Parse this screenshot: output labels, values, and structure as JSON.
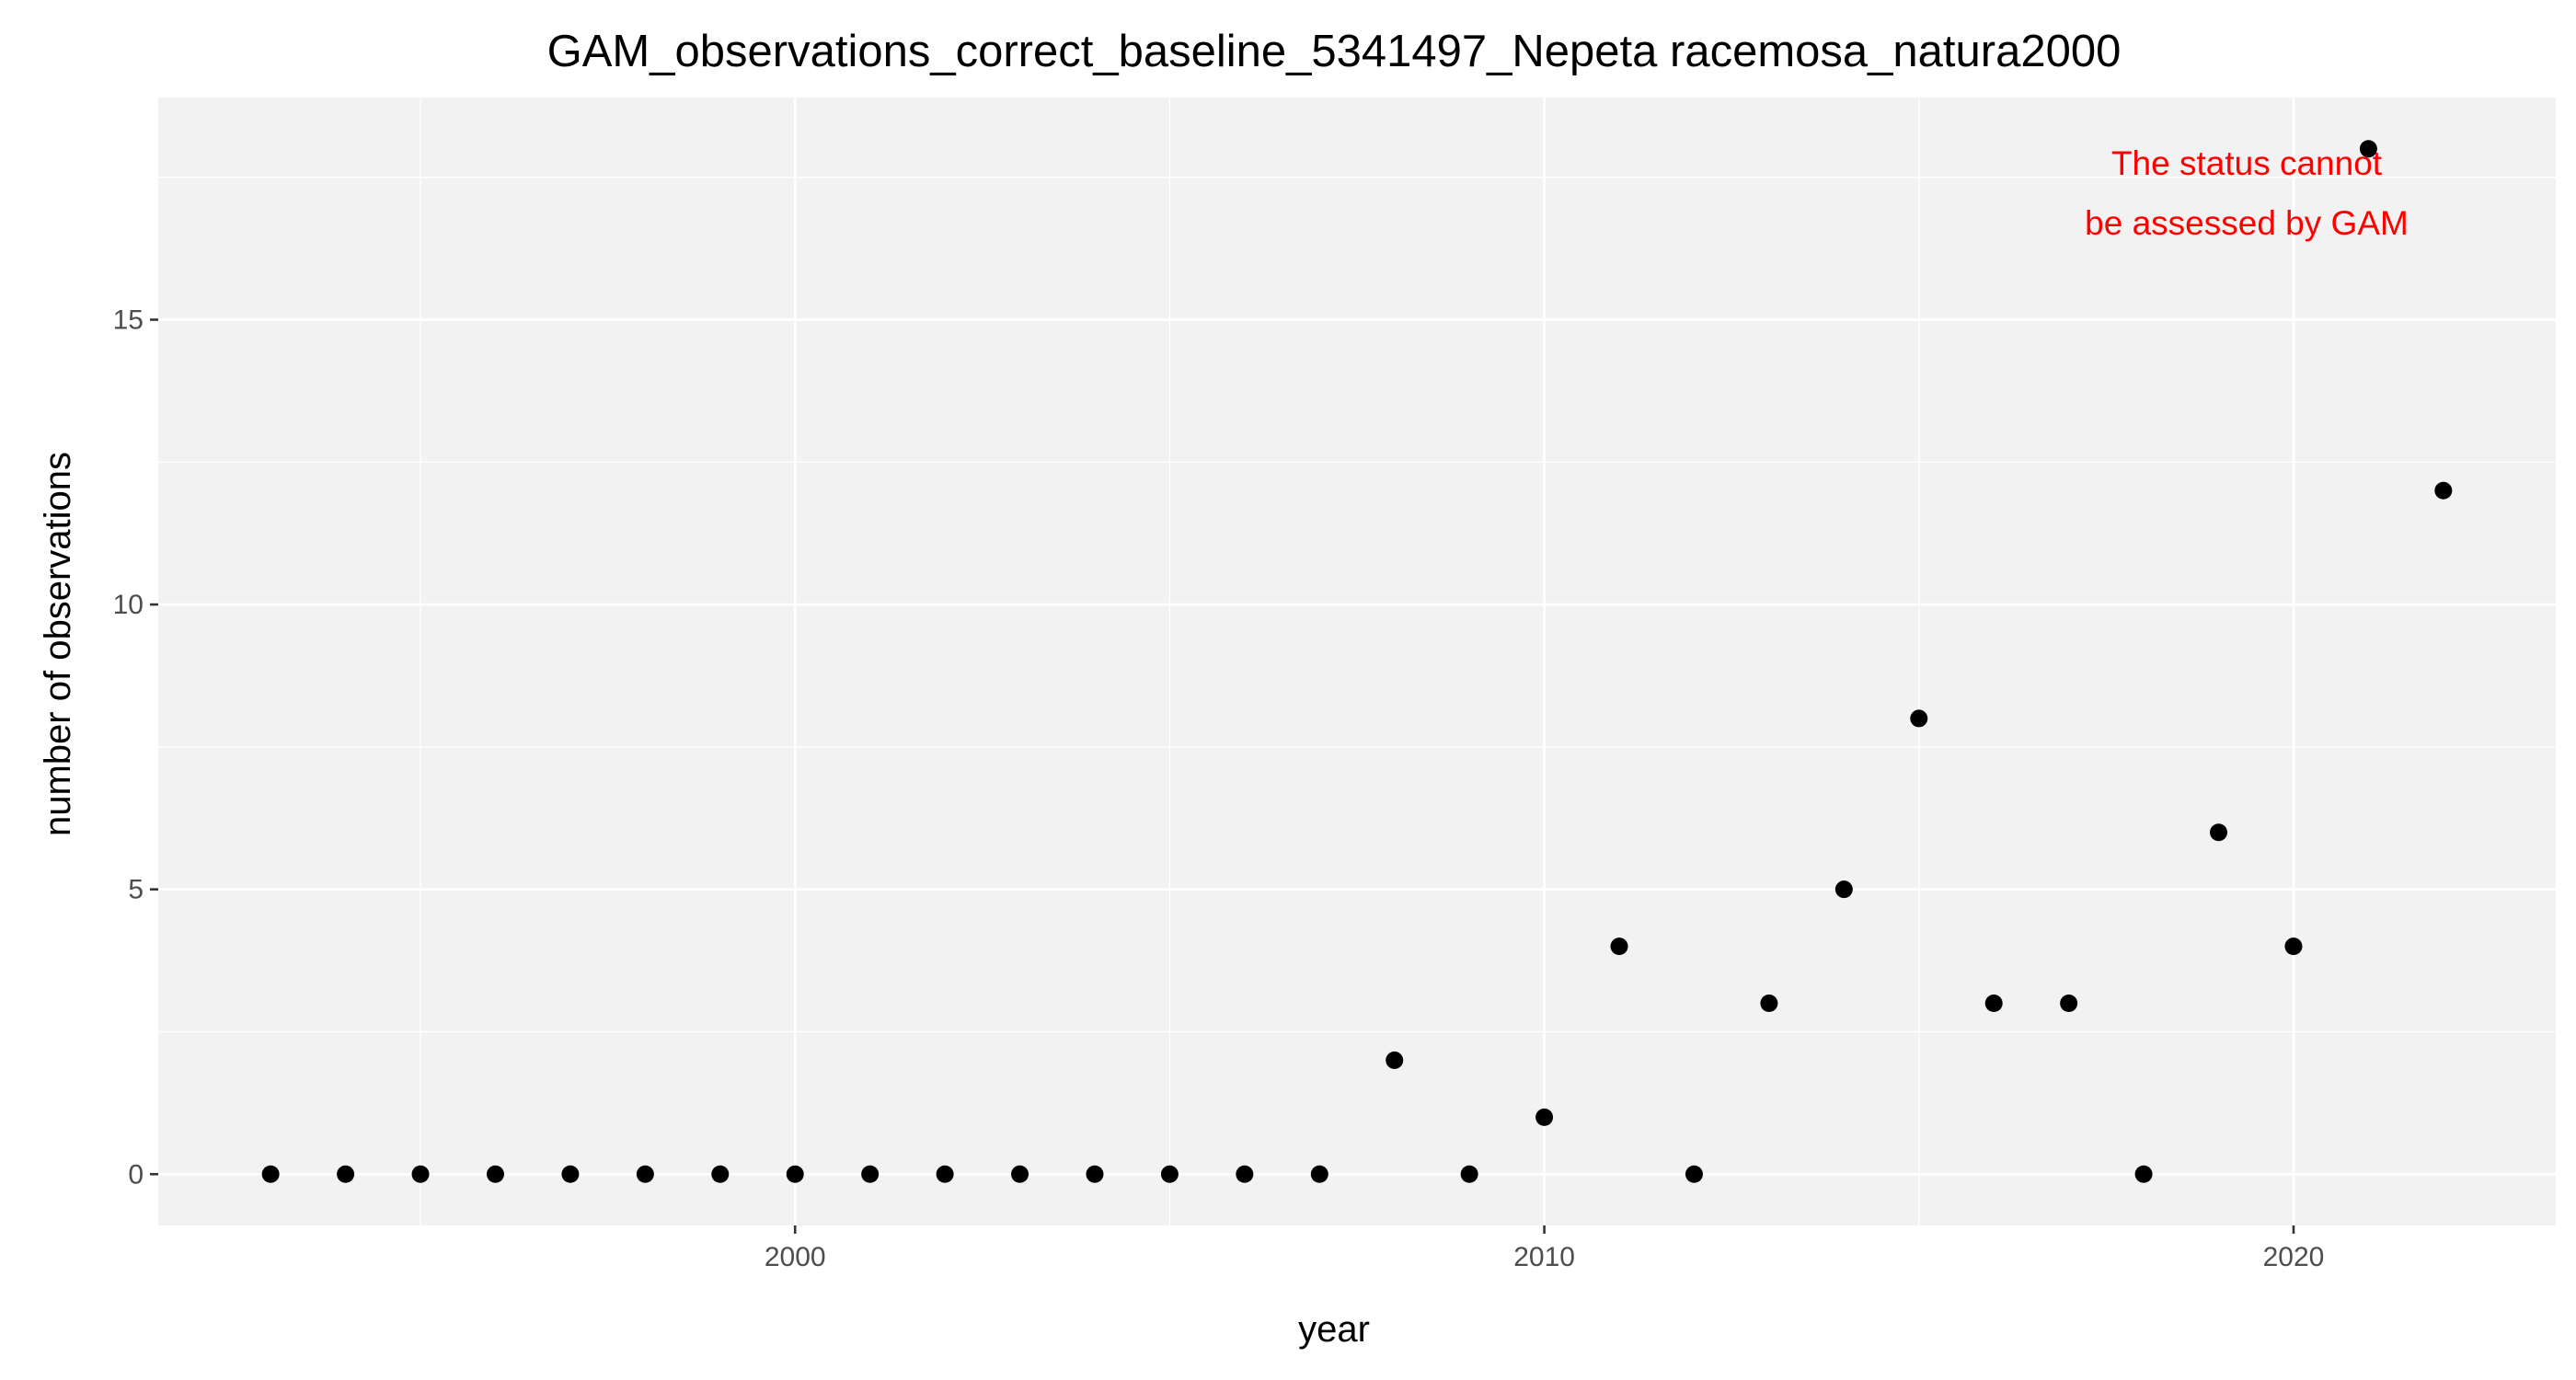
{
  "chart_data": {
    "type": "scatter",
    "title": "GAM_observations_correct_baseline_5341497_Nepeta racemosa_natura2000",
    "xlabel": "year",
    "ylabel": "number of observations",
    "xlim": [
      1991.5,
      2023.5
    ],
    "ylim": [
      -0.9,
      18.9
    ],
    "x_ticks": [
      2000,
      2010,
      2020
    ],
    "x_minor_ticks": [
      1995,
      2005,
      2015
    ],
    "y_ticks": [
      0,
      5,
      10,
      15
    ],
    "y_minor_ticks": [
      2.5,
      7.5,
      12.5,
      17.5
    ],
    "grid": true,
    "legend": "none",
    "point_color": "#000000",
    "panel_background": "#f2f2f2",
    "points": [
      {
        "x": 1993,
        "y": 0
      },
      {
        "x": 1994,
        "y": 0
      },
      {
        "x": 1995,
        "y": 0
      },
      {
        "x": 1996,
        "y": 0
      },
      {
        "x": 1997,
        "y": 0
      },
      {
        "x": 1998,
        "y": 0
      },
      {
        "x": 1999,
        "y": 0
      },
      {
        "x": 2000,
        "y": 0
      },
      {
        "x": 2001,
        "y": 0
      },
      {
        "x": 2002,
        "y": 0
      },
      {
        "x": 2003,
        "y": 0
      },
      {
        "x": 2004,
        "y": 0
      },
      {
        "x": 2005,
        "y": 0
      },
      {
        "x": 2006,
        "y": 0
      },
      {
        "x": 2007,
        "y": 0
      },
      {
        "x": 2008,
        "y": 2
      },
      {
        "x": 2009,
        "y": 0
      },
      {
        "x": 2010,
        "y": 1
      },
      {
        "x": 2011,
        "y": 4
      },
      {
        "x": 2012,
        "y": 0
      },
      {
        "x": 2013,
        "y": 3
      },
      {
        "x": 2014,
        "y": 5
      },
      {
        "x": 2015,
        "y": 8
      },
      {
        "x": 2016,
        "y": 3
      },
      {
        "x": 2017,
        "y": 3
      },
      {
        "x": 2018,
        "y": 0
      },
      {
        "x": 2019,
        "y": 6
      },
      {
        "x": 2020,
        "y": 4
      },
      {
        "x": 2021,
        "y": 18
      },
      {
        "x": 2022,
        "y": 12
      }
    ],
    "annotation": {
      "lines": [
        "The status cannot",
        "be assessed by GAM"
      ],
      "color": "#ff0000",
      "placement": "top-right"
    }
  }
}
